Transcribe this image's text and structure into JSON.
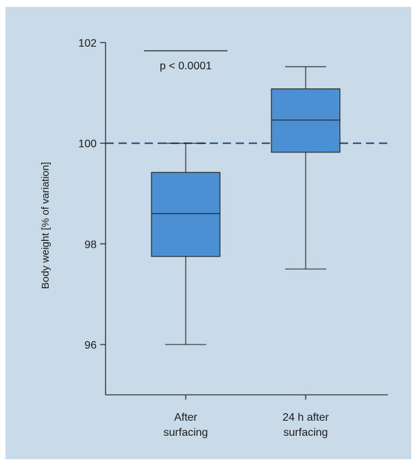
{
  "chart_data": {
    "type": "box",
    "ylabel": "Body weight [% of variation]",
    "xlabel": "",
    "ylim": [
      95,
      102
    ],
    "yticks": [
      96,
      98,
      100,
      102
    ],
    "categories": [
      {
        "lines": [
          "After",
          "surfacing"
        ]
      },
      {
        "lines": [
          "24 h after",
          "surfacing"
        ]
      }
    ],
    "boxes": [
      {
        "min": 96.0,
        "q1": 97.75,
        "median": 98.6,
        "q3": 99.42,
        "max": 100.0
      },
      {
        "min": 97.5,
        "q1": 99.82,
        "median": 100.46,
        "q3": 101.08,
        "max": 101.52
      }
    ],
    "reference_line": {
      "y": 100,
      "style": "dashed",
      "color": "#1f4e79"
    },
    "annotation": {
      "text": "p < 0.0001"
    },
    "box_color": "#4a90d2",
    "grid": false
  }
}
